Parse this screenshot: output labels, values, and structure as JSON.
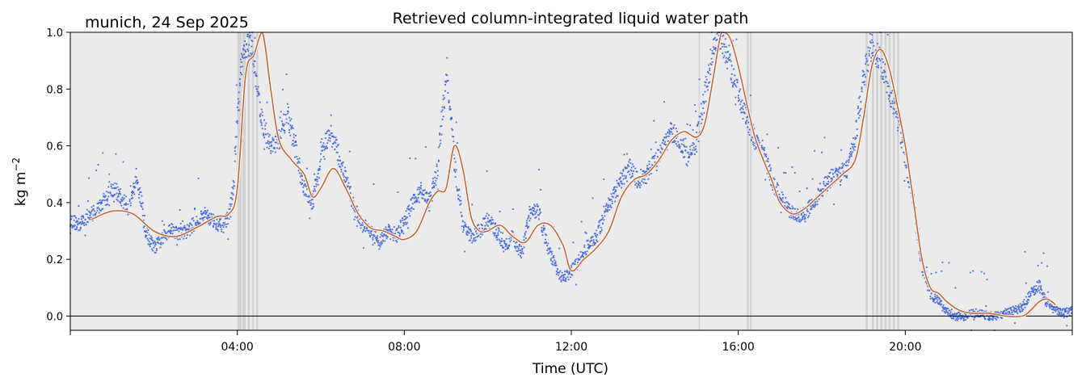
{
  "chart_data": {
    "type": "scatter",
    "title": "Retrieved column-integrated liquid water path",
    "location_date": "munich, 24 Sep 2025",
    "xlabel": "Time (UTC)",
    "ylabel": "kg m",
    "ylabel_exponent": "−2",
    "xlim": [
      0,
      24
    ],
    "ylim": [
      -0.05,
      1.0
    ],
    "x_ticks": [
      0,
      4,
      8,
      12,
      16,
      20,
      24
    ],
    "x_tick_labels": [
      "",
      "04:00",
      "08:00",
      "12:00",
      "16:00",
      "20:00",
      ""
    ],
    "y_ticks": [
      0.0,
      0.2,
      0.4,
      0.6,
      0.8,
      1.0
    ],
    "y_tick_labels": [
      "0.0",
      "0.2",
      "0.4",
      "0.6",
      "0.8",
      "1.0"
    ],
    "zero_line": 0.0,
    "grid": false,
    "background_color": "#ebebeb",
    "raw_color": "#4169e1",
    "smooth_color": "#c8642d",
    "flag_color": "#cfcfcf",
    "series": [
      {
        "kind": "raw_points",
        "x": [
          0.0,
          0.2,
          0.4,
          0.6,
          0.8,
          1.0,
          1.2,
          1.4,
          1.6,
          1.8,
          2.0,
          2.2,
          2.4,
          2.6,
          2.8,
          3.0,
          3.2,
          3.4,
          3.6,
          3.8,
          3.9,
          4.0,
          4.1,
          4.2,
          4.3,
          4.4,
          4.5,
          4.6,
          4.8,
          5.0,
          5.2,
          5.4,
          5.6,
          5.8,
          6.0,
          6.2,
          6.4,
          6.6,
          6.8,
          7.0,
          7.2,
          7.4,
          7.6,
          7.8,
          8.0,
          8.2,
          8.4,
          8.6,
          8.8,
          9.0,
          9.2,
          9.4,
          9.6,
          9.8,
          10.0,
          10.2,
          10.4,
          10.6,
          10.8,
          11.0,
          11.2,
          11.4,
          11.6,
          11.8,
          12.0,
          12.2,
          12.4,
          12.6,
          12.8,
          13.0,
          13.2,
          13.4,
          13.6,
          13.8,
          14.0,
          14.2,
          14.4,
          14.6,
          14.8,
          15.0,
          15.2,
          15.4,
          15.6,
          15.8,
          16.0,
          16.2,
          16.4,
          16.6,
          16.8,
          17.0,
          17.2,
          17.4,
          17.6,
          17.8,
          18.0,
          18.2,
          18.4,
          18.6,
          18.8,
          19.0,
          19.2,
          19.4,
          19.6,
          19.8,
          20.0,
          20.2,
          20.4,
          20.6,
          20.8,
          21.0,
          21.2,
          21.4,
          21.6,
          21.8,
          22.0,
          22.2,
          22.4,
          22.6,
          22.8,
          23.0,
          23.2,
          23.4,
          23.6,
          23.8,
          24.0
        ],
        "y": [
          0.34,
          0.32,
          0.35,
          0.37,
          0.4,
          0.45,
          0.42,
          0.38,
          0.5,
          0.3,
          0.24,
          0.27,
          0.31,
          0.29,
          0.3,
          0.33,
          0.36,
          0.34,
          0.32,
          0.35,
          0.45,
          0.7,
          0.88,
          0.95,
          0.96,
          0.9,
          0.78,
          0.68,
          0.6,
          0.62,
          0.72,
          0.58,
          0.45,
          0.4,
          0.55,
          0.65,
          0.58,
          0.48,
          0.38,
          0.32,
          0.3,
          0.26,
          0.3,
          0.28,
          0.33,
          0.4,
          0.44,
          0.4,
          0.52,
          0.86,
          0.55,
          0.32,
          0.28,
          0.3,
          0.34,
          0.3,
          0.25,
          0.28,
          0.22,
          0.35,
          0.38,
          0.26,
          0.18,
          0.13,
          0.16,
          0.2,
          0.25,
          0.28,
          0.36,
          0.42,
          0.48,
          0.52,
          0.48,
          0.5,
          0.55,
          0.6,
          0.65,
          0.62,
          0.55,
          0.62,
          0.78,
          0.95,
          0.98,
          0.88,
          0.78,
          0.7,
          0.62,
          0.58,
          0.48,
          0.42,
          0.38,
          0.35,
          0.36,
          0.4,
          0.45,
          0.48,
          0.5,
          0.52,
          0.62,
          0.85,
          0.95,
          0.9,
          0.8,
          0.7,
          0.55,
          0.4,
          0.18,
          0.08,
          0.05,
          0.02,
          0.0,
          0.0,
          0.01,
          0.01,
          0.0,
          0.0,
          0.01,
          0.02,
          0.03,
          0.08,
          0.11,
          0.04,
          0.02,
          0.01,
          0.02
        ]
      },
      {
        "kind": "smoothed_line",
        "x": [
          0.5,
          1.0,
          1.5,
          2.0,
          2.5,
          3.0,
          3.5,
          3.8,
          4.0,
          4.2,
          4.4,
          4.6,
          4.8,
          5.0,
          5.3,
          5.6,
          5.8,
          6.0,
          6.3,
          6.6,
          6.9,
          7.2,
          7.5,
          7.8,
          8.0,
          8.3,
          8.6,
          8.8,
          9.0,
          9.2,
          9.4,
          9.6,
          9.8,
          10.0,
          10.3,
          10.6,
          10.9,
          11.2,
          11.5,
          11.8,
          12.0,
          12.3,
          12.6,
          12.9,
          13.2,
          13.5,
          13.8,
          14.1,
          14.4,
          14.7,
          15.0,
          15.2,
          15.4,
          15.6,
          15.8,
          16.0,
          16.2,
          16.4,
          16.6,
          16.8,
          17.0,
          17.3,
          17.6,
          17.9,
          18.2,
          18.5,
          18.8,
          19.0,
          19.2,
          19.4,
          19.6,
          19.8,
          20.0,
          20.2,
          20.4,
          20.6,
          20.8,
          21.0,
          21.3,
          21.6,
          22.0,
          22.4,
          22.8,
          23.0,
          23.2,
          23.4,
          23.6
        ],
        "y": [
          0.34,
          0.37,
          0.36,
          0.3,
          0.28,
          0.31,
          0.35,
          0.36,
          0.45,
          0.85,
          0.92,
          1.0,
          0.8,
          0.62,
          0.55,
          0.5,
          0.42,
          0.45,
          0.52,
          0.45,
          0.36,
          0.31,
          0.3,
          0.28,
          0.27,
          0.3,
          0.4,
          0.44,
          0.45,
          0.6,
          0.52,
          0.35,
          0.3,
          0.3,
          0.32,
          0.28,
          0.26,
          0.32,
          0.32,
          0.25,
          0.16,
          0.2,
          0.24,
          0.3,
          0.42,
          0.48,
          0.5,
          0.55,
          0.62,
          0.65,
          0.63,
          0.68,
          0.84,
          1.0,
          0.98,
          0.88,
          0.75,
          0.63,
          0.55,
          0.48,
          0.4,
          0.36,
          0.38,
          0.42,
          0.46,
          0.5,
          0.55,
          0.7,
          0.88,
          0.94,
          0.88,
          0.75,
          0.6,
          0.4,
          0.2,
          0.1,
          0.08,
          0.05,
          0.02,
          0.01,
          0.01,
          0.0,
          0.0,
          0.02,
          0.05,
          0.06,
          0.04
        ]
      }
    ],
    "flagged_intervals": [
      [
        4.0,
        4.1
      ],
      [
        4.12,
        4.2
      ],
      [
        4.25,
        4.3
      ],
      [
        4.35,
        4.4
      ],
      [
        4.45,
        4.5
      ],
      [
        15.05,
        15.08
      ],
      [
        16.2,
        16.25
      ],
      [
        16.28,
        16.32
      ],
      [
        19.05,
        19.1
      ],
      [
        19.2,
        19.25
      ],
      [
        19.3,
        19.35
      ],
      [
        19.4,
        19.45
      ],
      [
        19.5,
        19.55
      ],
      [
        19.6,
        19.65
      ],
      [
        19.7,
        19.75
      ],
      [
        19.8,
        19.85
      ]
    ]
  }
}
